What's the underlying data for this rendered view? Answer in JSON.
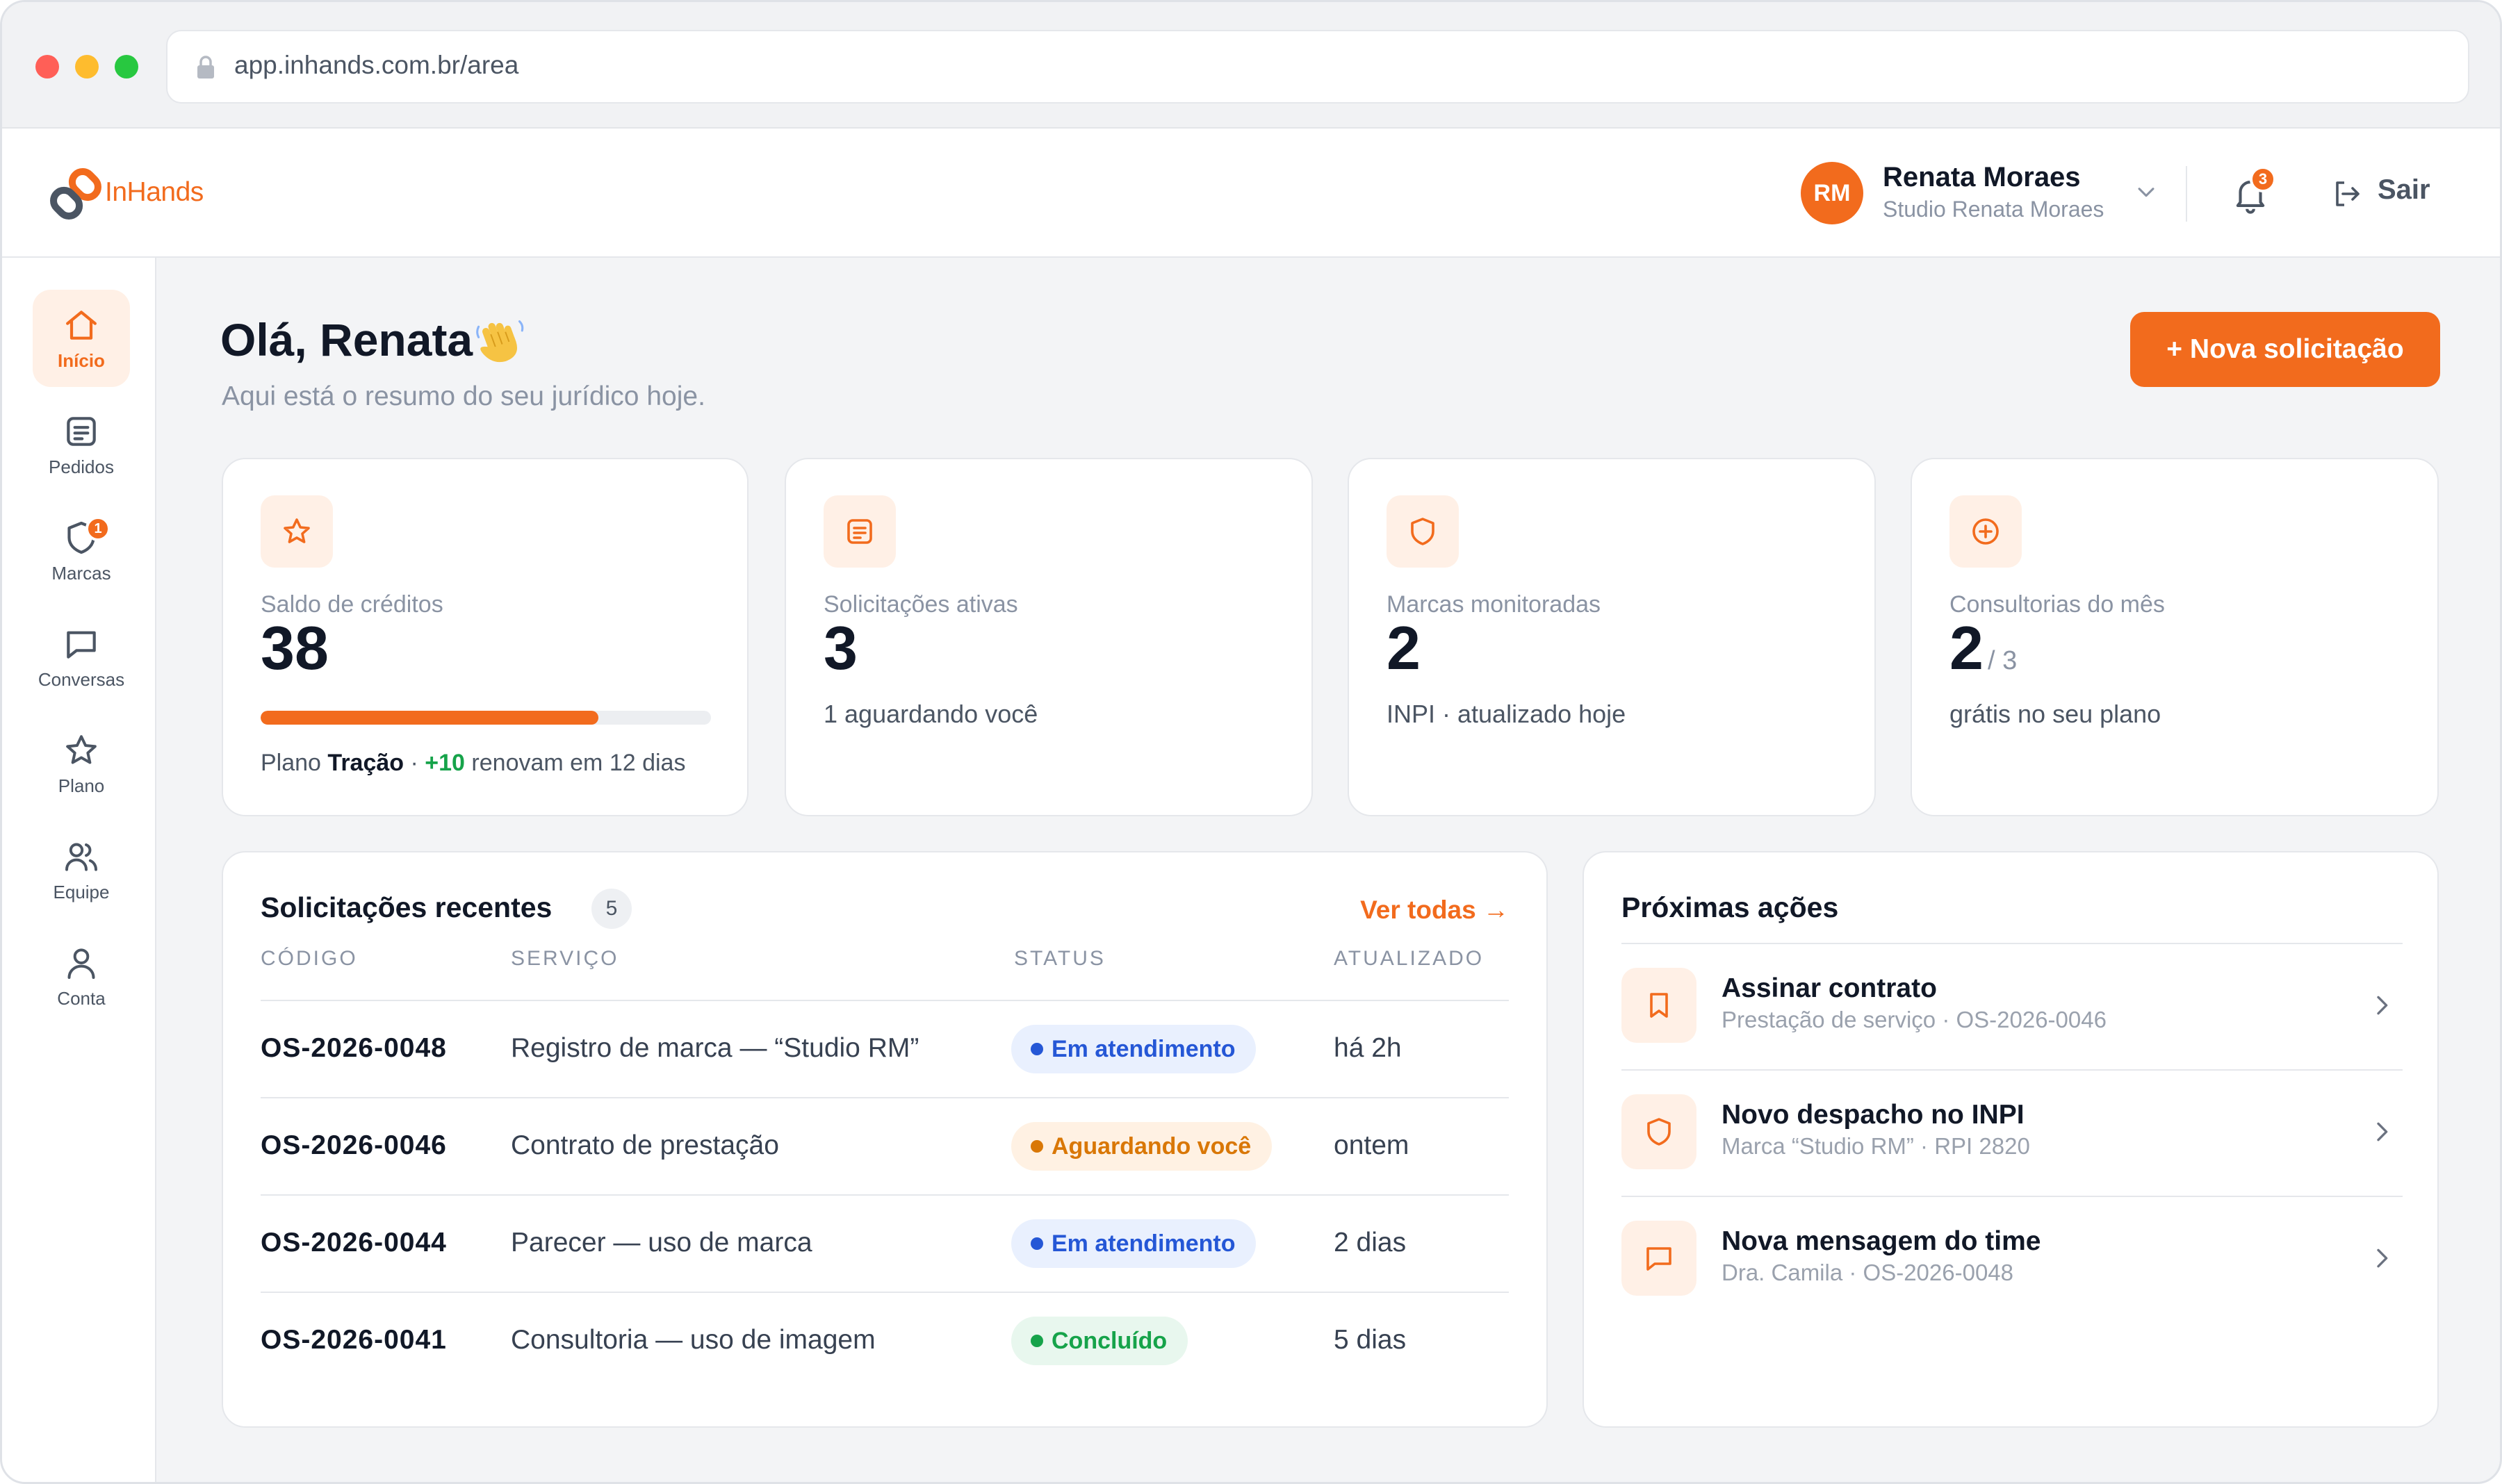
{
  "browser": {
    "url": "app.inhands.com.br/area"
  },
  "header": {
    "brand": "InHands",
    "user": {
      "initials": "RM",
      "name": "Renata Moraes",
      "company": "Studio Renata Moraes"
    },
    "notifications_count": "3",
    "logout_label": "Sair"
  },
  "sidebar": {
    "items": [
      {
        "label": "Início",
        "icon": "home-icon",
        "active": true
      },
      {
        "label": "Pedidos",
        "icon": "document-icon"
      },
      {
        "label": "Marcas",
        "icon": "shield-icon",
        "badge": "1"
      },
      {
        "label": "Conversas",
        "icon": "chat-icon"
      },
      {
        "label": "Plano",
        "icon": "star-icon"
      },
      {
        "label": "Equipe",
        "icon": "team-icon"
      },
      {
        "label": "Conta",
        "icon": "user-icon"
      }
    ]
  },
  "main": {
    "greeting": "Olá, Renata",
    "subtitle": "Aqui está o resumo do seu jurídico hoje.",
    "new_request_label": "+ Nova solicitação"
  },
  "stats": [
    {
      "icon": "star-icon",
      "label": "Saldo de créditos",
      "value": "38",
      "progress": 0.75,
      "plan_prefix": "Plano",
      "plan_name": "Tração",
      "plan_sep": "·",
      "plan_plus": "+10",
      "plan_suffix": "renovam em 12 dias"
    },
    {
      "icon": "document-icon",
      "label": "Solicitações ativas",
      "value": "3",
      "note": "1 aguardando você"
    },
    {
      "icon": "shield-icon",
      "label": "Marcas monitoradas",
      "value": "2",
      "note": "INPI · atualizado hoje"
    },
    {
      "icon": "plus-circle-icon",
      "label": "Consultorias do mês",
      "value": "2",
      "value_sub": "/ 3",
      "note": "grátis no seu plano"
    }
  ],
  "recent": {
    "title": "Solicitações recentes",
    "count": "5",
    "see_all": "Ver todas →",
    "columns": [
      "CÓDIGO",
      "SERVIÇO",
      "STATUS",
      "ATUALIZADO"
    ],
    "rows": [
      {
        "code": "OS-2026-0048",
        "service": "Registro de marca — “Studio RM”",
        "status": "Em atendimento",
        "status_color": "#2557d6",
        "updated": "há 2h"
      },
      {
        "code": "OS-2026-0046",
        "service": "Contrato de prestação",
        "status": "Aguardando você",
        "status_color": "#d97706",
        "updated": "ontem"
      },
      {
        "code": "OS-2026-0044",
        "service": "Parecer — uso de marca",
        "status": "Em atendimento",
        "status_color": "#2557d6",
        "updated": "2 dias"
      },
      {
        "code": "OS-2026-0041",
        "service": "Consultoria — uso de imagem",
        "status": "Concluído",
        "status_color": "#16a34a",
        "updated": "5 dias"
      }
    ]
  },
  "next_actions": {
    "title": "Próximas ações",
    "items": [
      {
        "icon": "bookmark-icon",
        "title": "Assinar contrato",
        "subtitle": "Prestação de serviço · OS-2026-0046"
      },
      {
        "icon": "shield-icon",
        "title": "Novo despacho no INPI",
        "subtitle": "Marca “Studio RM” · RPI 2820"
      },
      {
        "icon": "chat-icon",
        "title": "Nova mensagem do time",
        "subtitle": "Dra. Camila · OS-2026-0048"
      }
    ]
  },
  "colors": {
    "accent": "#f26b1d",
    "accent_soft": "#fff0e6",
    "text": "#111827",
    "muted": "#8a93a3"
  }
}
